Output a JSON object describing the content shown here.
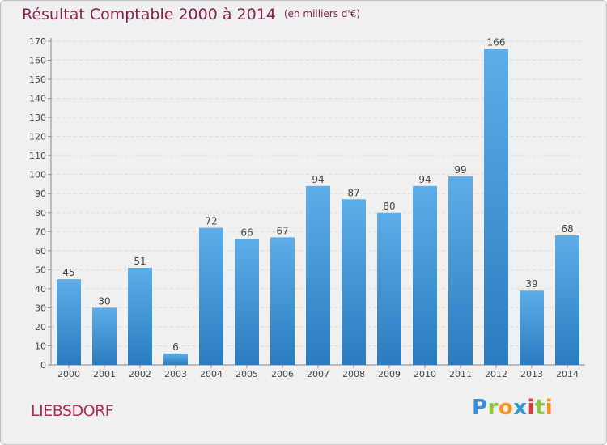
{
  "chart_data": {
    "type": "bar",
    "title": "Résultat Comptable 2000 à 2014",
    "subtitle": "(en milliers d'€)",
    "categories": [
      "2000",
      "2001",
      "2002",
      "2003",
      "2004",
      "2005",
      "2006",
      "2007",
      "2008",
      "2009",
      "2010",
      "2011",
      "2012",
      "2013",
      "2014"
    ],
    "values": [
      45,
      30,
      51,
      6,
      72,
      66,
      67,
      94,
      87,
      80,
      94,
      99,
      166,
      39,
      68
    ],
    "ylim": [
      0,
      170
    ],
    "yticks": [
      0,
      10,
      20,
      30,
      40,
      50,
      60,
      70,
      80,
      90,
      100,
      110,
      120,
      130,
      140,
      150,
      160,
      170
    ],
    "grid": true,
    "bar_color_top": "#5dade8",
    "bar_color_bottom": "#2a7cc0",
    "xlabel": "",
    "ylabel": ""
  },
  "commune": "LIEBSDORF",
  "logo": {
    "letters": [
      "P",
      "r",
      "o",
      "x",
      "i",
      "t",
      "i"
    ],
    "colors": [
      "#3b8fd8",
      "#8dc63f",
      "#f7941d",
      "#2b9bd6",
      "#e2373f",
      "#8dc63f",
      "#f7941d"
    ]
  }
}
